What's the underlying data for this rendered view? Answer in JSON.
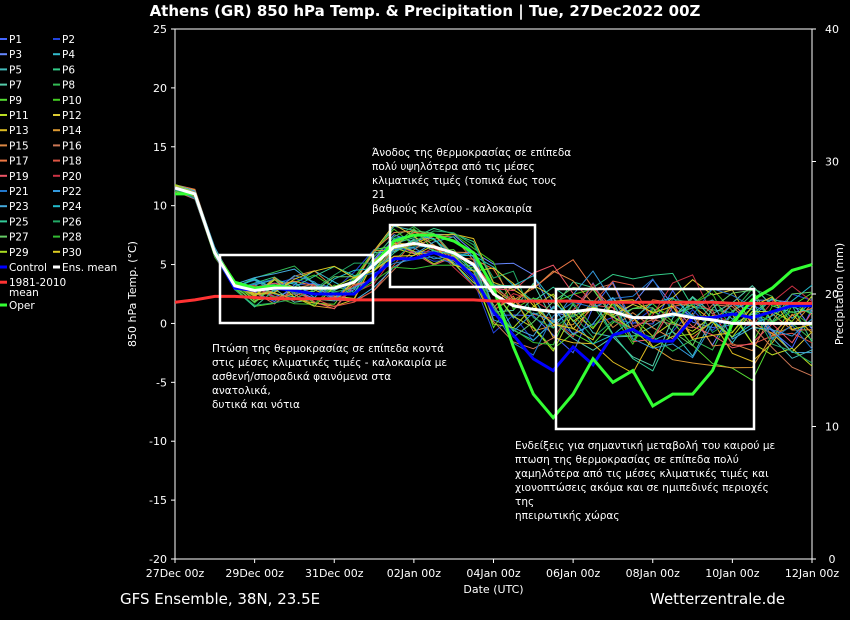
{
  "header": {
    "title": "Athens  (GR)  850 hPa Temp. & Precipitation | Tue, 27Dec2022 00Z"
  },
  "footer": {
    "left": "GFS Ensemble, 38N, 23.5E",
    "right": "Wetterzentrale.de"
  },
  "annotations": [
    "Άνοδος της θερμοκρασίας σε επίπεδα\nπολύ υψηλότερα από τις μέσες\nκλιματικές τιμές (τοπικά έως τους 21\nβαθμούς Κελσίου - καλοκαιρία",
    "Πτώση της θερμοκρασίας σε επίπεδα κοντά\nστις μέσες κλιματικές τιμές - καλοκαιρία με\nασθενή/σποραδικά φαινόμενα στα ανατολικά,\nδυτικά και νότια",
    "Ενδείξεις για σημαντική μεταβολή του καιρού με\nπτωση της θερμοκρασίας σε επίπεδα πολύ\nχαμηλότερα από τις μέσες κλιματικές τιμές και\nχιονοπτώσεις ακόμα και σε ημιπεδινές περιοχές της\nηπειρωτικής χώρας"
  ],
  "chart_data": {
    "type": "line",
    "title": "Athens  (GR)  850 hPa Temp. & Precipitation | Tue, 27Dec2022 00Z",
    "xlabel": "Date (UTC)",
    "ylabel": "850 hPa Temp. (°C)",
    "y2label": "Precipitation (mm)",
    "ylim": [
      -20,
      25
    ],
    "y2lim": [
      0,
      40
    ],
    "yticks": [
      -20,
      -15,
      -10,
      -5,
      0,
      5,
      10,
      15,
      20,
      25
    ],
    "y2ticks": [
      0,
      10,
      20,
      30,
      40
    ],
    "x_hours": [
      0,
      12,
      24,
      36,
      48,
      60,
      72,
      84,
      96,
      108,
      120,
      132,
      144,
      156,
      168,
      180,
      192,
      204,
      216,
      228,
      240,
      252,
      264,
      276,
      288,
      300,
      312,
      324,
      336,
      348,
      360,
      372,
      384
    ],
    "xticks": [
      {
        "label": "27Dec 00z",
        "hour": 0
      },
      {
        "label": "29Dec 00z",
        "hour": 48
      },
      {
        "label": "31Dec 00z",
        "hour": 96
      },
      {
        "label": "02Jan 00z",
        "hour": 144
      },
      {
        "label": "04Jan 00z",
        "hour": 192
      },
      {
        "label": "06Jan 00z",
        "hour": 240
      },
      {
        "label": "08Jan 00z",
        "hour": 288
      },
      {
        "label": "10Jan 00z",
        "hour": 336
      },
      {
        "label": "12Jan 00z",
        "hour": 384
      }
    ],
    "grid": false,
    "legend_position": "left",
    "series": [
      {
        "name": "Control",
        "color": "#0000ff",
        "width": 3,
        "values": [
          11.5,
          11,
          6,
          3,
          2.8,
          3,
          2.8,
          2.5,
          2.5,
          2.5,
          4,
          5.5,
          5.5,
          6,
          5.5,
          4,
          1,
          -1,
          -3,
          -4,
          -2,
          -3.5,
          -1,
          -0.5,
          -1.5,
          -1.5,
          0.5,
          0.5,
          0.8,
          0.5,
          1,
          1.5,
          1.5
        ]
      },
      {
        "name": "Oper",
        "color": "#33ff33",
        "width": 3,
        "values": [
          11,
          11,
          6,
          3.5,
          3,
          3.2,
          3,
          3,
          3,
          3.5,
          5,
          7,
          7.5,
          7.5,
          7,
          6,
          3,
          -2,
          -6,
          -8,
          -6,
          -3,
          -5,
          -4,
          -7,
          -6,
          -6,
          -4,
          0,
          2,
          3,
          4.5,
          5
        ]
      },
      {
        "name": "Ens. mean",
        "color": "#ffffff",
        "width": 3,
        "values": [
          11.5,
          11,
          6,
          3.2,
          2.8,
          3,
          3,
          3,
          3,
          3.5,
          5,
          6.5,
          6.8,
          6.5,
          6,
          5,
          2.5,
          1.5,
          1.2,
          1,
          1,
          1.2,
          1,
          0.5,
          0.5,
          0.8,
          0.5,
          0.3,
          0,
          0,
          0,
          0,
          0
        ]
      },
      {
        "name": "1981-2010\nmean",
        "color": "#ff3333",
        "width": 3,
        "values": [
          1.8,
          2,
          2.3,
          2.3,
          2.2,
          2.1,
          2.1,
          2.1,
          2.1,
          2,
          2,
          2,
          2,
          2,
          2,
          2,
          1.9,
          1.9,
          1.9,
          1.9,
          1.9,
          1.8,
          1.8,
          1.8,
          1.8,
          1.8,
          1.8,
          1.8,
          1.7,
          1.7,
          1.7,
          1.7,
          1.7
        ]
      }
    ],
    "members": [
      {
        "name": "P1",
        "color": "#4466ff"
      },
      {
        "name": "P2",
        "color": "#2244dd"
      },
      {
        "name": "P3",
        "color": "#6688ff"
      },
      {
        "name": "P4",
        "color": "#33bbcc"
      },
      {
        "name": "P5",
        "color": "#44bbbb"
      },
      {
        "name": "P6",
        "color": "#33cc88"
      },
      {
        "name": "P7",
        "color": "#55ccaa"
      },
      {
        "name": "P8",
        "color": "#33bb55"
      },
      {
        "name": "P9",
        "color": "#55dd33"
      },
      {
        "name": "P10",
        "color": "#44cc22"
      },
      {
        "name": "P11",
        "color": "#bbdd22"
      },
      {
        "name": "P12",
        "color": "#ddcc33"
      },
      {
        "name": "P13",
        "color": "#ddbb22"
      },
      {
        "name": "P14",
        "color": "#dd9933"
      },
      {
        "name": "P15",
        "color": "#dd8844"
      },
      {
        "name": "P16",
        "color": "#cc7755"
      },
      {
        "name": "P17",
        "color": "#ee7744"
      },
      {
        "name": "P18",
        "color": "#dd5544"
      },
      {
        "name": "P19",
        "color": "#ee5566"
      },
      {
        "name": "P20",
        "color": "#cc3344"
      },
      {
        "name": "P21",
        "color": "#2277cc"
      },
      {
        "name": "P22",
        "color": "#3399dd"
      },
      {
        "name": "P23",
        "color": "#44aadd"
      },
      {
        "name": "P24",
        "color": "#22bbcc"
      },
      {
        "name": "P25",
        "color": "#33cc99"
      },
      {
        "name": "P26",
        "color": "#22aa66"
      },
      {
        "name": "P27",
        "color": "#66cc66"
      },
      {
        "name": "P28",
        "color": "#33bb33"
      },
      {
        "name": "P29",
        "color": "#aadd22"
      },
      {
        "name": "P30",
        "color": "#ddcc22"
      }
    ]
  }
}
